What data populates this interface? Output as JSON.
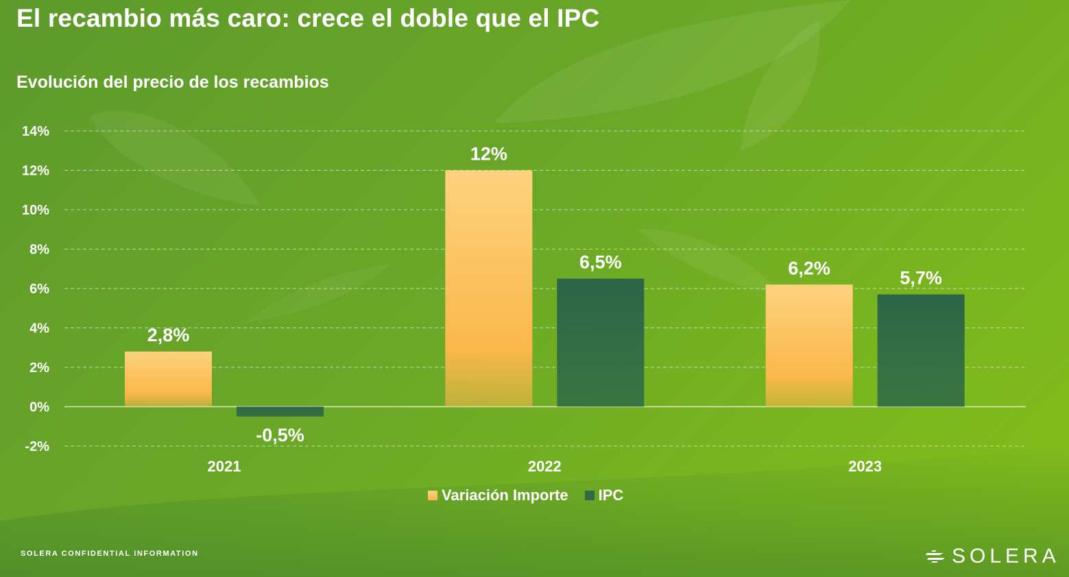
{
  "header": {
    "title": "El recambio más caro: crece el doble que el IPC",
    "subtitle": "Evolución del precio de los recambios"
  },
  "colors": {
    "variacion_top": "#fdd27e",
    "variacion_bottom": "#fbb84a",
    "ipc": "#2f6a47",
    "grid": "#e8f2d8",
    "text": "#ffffff"
  },
  "chart_data": {
    "type": "bar",
    "categories": [
      "2021",
      "2022",
      "2023"
    ],
    "series": [
      {
        "name": "Variación Importe",
        "values": [
          2.8,
          12,
          6.2
        ],
        "labels": [
          "2,8%",
          "12%",
          "6,2%"
        ]
      },
      {
        "name": "IPC",
        "values": [
          -0.5,
          6.5,
          5.7
        ],
        "labels": [
          "-0,5%",
          "6,5%",
          "5,7%"
        ]
      }
    ],
    "yticks": [
      14,
      12,
      10,
      8,
      6,
      4,
      2,
      0,
      -2
    ],
    "ytick_labels": [
      "14%",
      "12%",
      "10%",
      "8%",
      "6%",
      "4%",
      "2%",
      "0%",
      "-2%"
    ],
    "ylim": [
      -2,
      14
    ],
    "grid": true,
    "legend_position": "bottom-center",
    "title": "Evolución del precio de los recambios",
    "xlabel": "",
    "ylabel": ""
  },
  "footer": {
    "confidential": "SOLERA CONFIDENTIAL INFORMATION",
    "logo_text": "SOLERA",
    "logo_icon": "solera-logo-icon"
  }
}
